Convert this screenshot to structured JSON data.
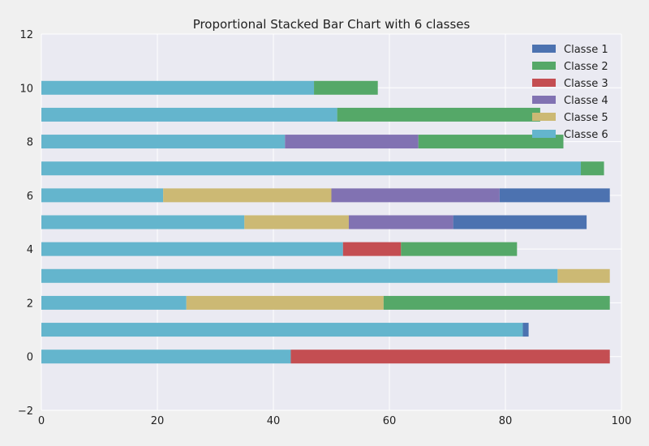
{
  "chart_data": {
    "type": "bar",
    "orientation": "horizontal",
    "stacked": true,
    "title": "Proportional Stacked Bar Chart with 6 classes",
    "xlabel": "",
    "ylabel": "",
    "xlim": [
      0,
      100
    ],
    "ylim": [
      -2,
      12
    ],
    "x_ticks": [
      "0",
      "20",
      "40",
      "60",
      "80",
      "100"
    ],
    "y_ticks": [
      "−2",
      "0",
      "2",
      "4",
      "6",
      "8",
      "10",
      "12"
    ],
    "grid": true,
    "legend_position": "top-right",
    "colors": {
      "background": "#f0f0f0",
      "plot_background": "#eaeaf2",
      "grid": "#ffffff"
    },
    "categories": [
      0,
      1,
      2,
      3,
      4,
      5,
      6,
      7,
      8,
      9,
      10
    ],
    "series": [
      {
        "name": "Classe 6",
        "color": "#64b5cd",
        "values": [
          43,
          83,
          25,
          89,
          52,
          35,
          21,
          93,
          42,
          51,
          47
        ]
      },
      {
        "name": "Classe 5",
        "color": "#ccb974",
        "values": [
          0,
          0,
          34,
          9,
          0,
          18,
          29,
          0,
          0,
          0,
          0
        ]
      },
      {
        "name": "Classe 4",
        "color": "#8172b2",
        "values": [
          0,
          0,
          0,
          0,
          0,
          18,
          29,
          0,
          23,
          0,
          0
        ]
      },
      {
        "name": "Classe 3",
        "color": "#c44e52",
        "values": [
          55,
          0,
          0,
          0,
          10,
          0,
          0,
          0,
          0,
          0,
          0
        ]
      },
      {
        "name": "Classe 2",
        "color": "#55a868",
        "values": [
          0,
          0,
          39,
          0,
          20,
          0,
          0,
          4,
          25,
          35,
          11
        ]
      },
      {
        "name": "Classe 1",
        "color": "#4c72b0",
        "values": [
          0,
          1,
          0,
          0,
          0,
          23,
          19,
          0,
          0,
          0,
          0
        ]
      }
    ],
    "legend_order": [
      "Classe 1",
      "Classe 2",
      "Classe 3",
      "Classe 4",
      "Classe 5",
      "Classe 6"
    ]
  }
}
